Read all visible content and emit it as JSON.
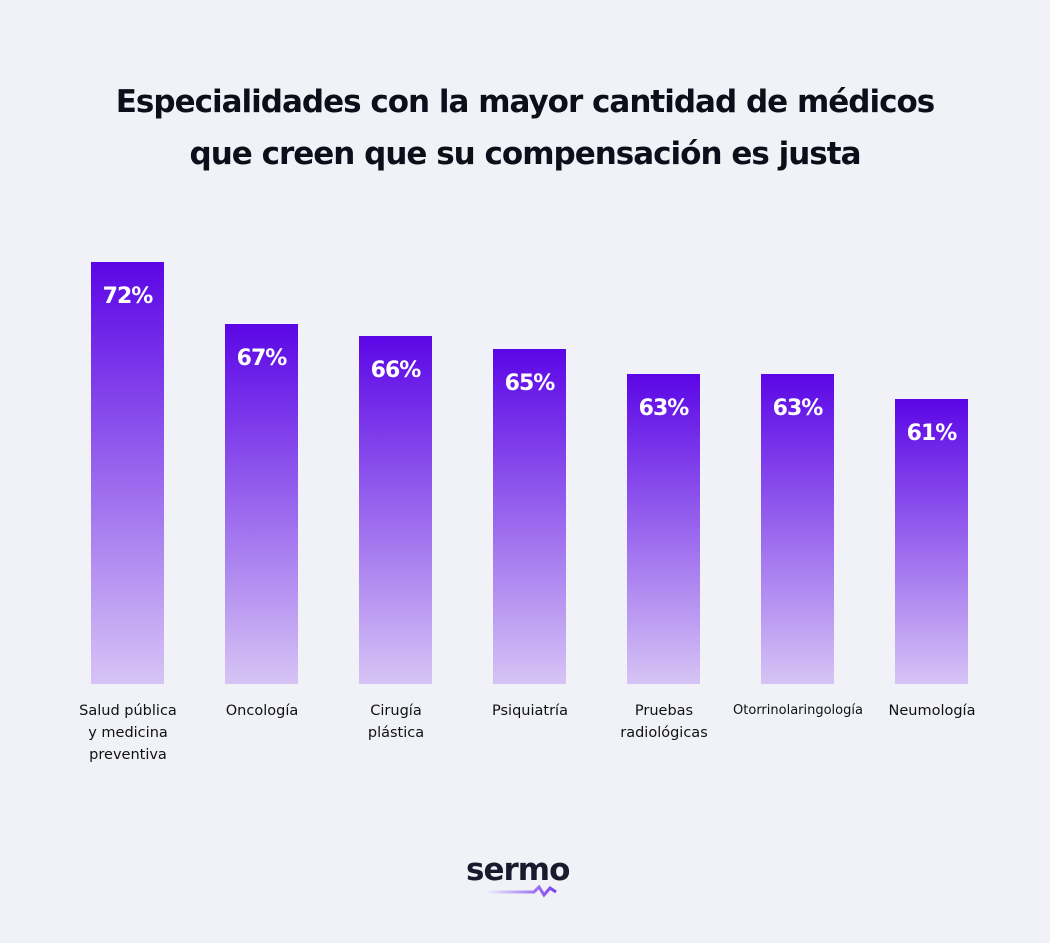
{
  "chart_data": {
    "type": "bar",
    "title": "Especialidades con la mayor cantidad de médicos\nque creen que su compensación es justa",
    "categories": [
      "Salud pública\ny medicina\npreventiva",
      "Oncología",
      "Cirugía\nplástica",
      "Psiquiatría",
      "Pruebas\nradiológicas",
      "Otorrinolaringología",
      "Neumología"
    ],
    "values": [
      72,
      67,
      66,
      65,
      63,
      63,
      61
    ],
    "value_labels": [
      "72%",
      "67%",
      "66%",
      "65%",
      "63%",
      "63%",
      "61%"
    ],
    "ylim": [
      38,
      72
    ],
    "grid": false,
    "bar_gradient": [
      "#5b06e6",
      "#d6c4f5"
    ]
  },
  "brand": {
    "logo_text": "sermo",
    "accent": "#7b3cf0"
  }
}
